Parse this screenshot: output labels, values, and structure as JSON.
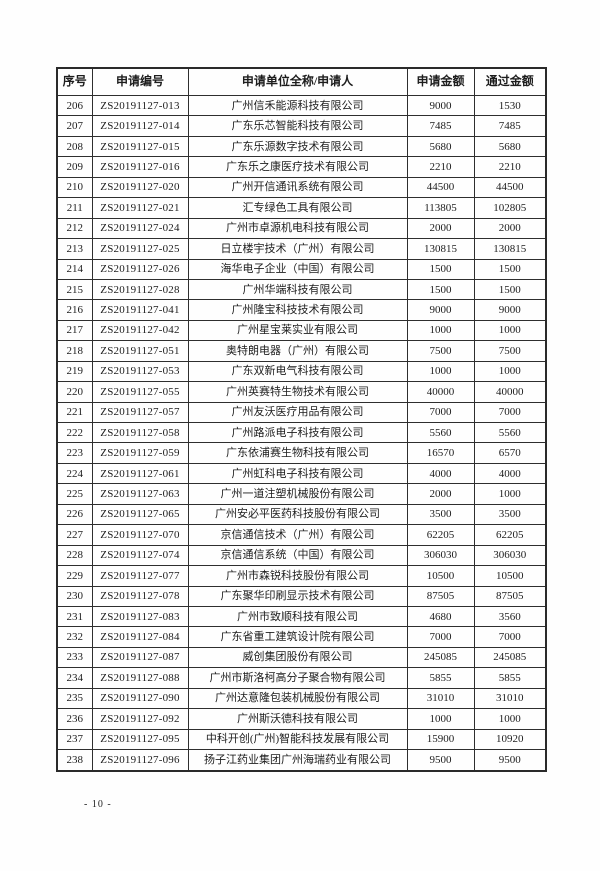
{
  "page": {
    "footer_page_number": "- 10 -"
  },
  "table": {
    "headers": [
      "序号",
      "申请编号",
      "申请单位全称/申请人",
      "申请金额",
      "通过金额"
    ],
    "rows": [
      [
        "206",
        "ZS20191127-013",
        "广州信禾能源科技有限公司",
        "9000",
        "1530"
      ],
      [
        "207",
        "ZS20191127-014",
        "广东乐芯智能科技有限公司",
        "7485",
        "7485"
      ],
      [
        "208",
        "ZS20191127-015",
        "广东乐源数字技术有限公司",
        "5680",
        "5680"
      ],
      [
        "209",
        "ZS20191127-016",
        "广东乐之康医疗技术有限公司",
        "2210",
        "2210"
      ],
      [
        "210",
        "ZS20191127-020",
        "广州开信通讯系统有限公司",
        "44500",
        "44500"
      ],
      [
        "211",
        "ZS20191127-021",
        "汇专绿色工具有限公司",
        "113805",
        "102805"
      ],
      [
        "212",
        "ZS20191127-024",
        "广州市卓源机电科技有限公司",
        "2000",
        "2000"
      ],
      [
        "213",
        "ZS20191127-025",
        "日立楼宇技术（广州）有限公司",
        "130815",
        "130815"
      ],
      [
        "214",
        "ZS20191127-026",
        "海华电子企业（中国）有限公司",
        "1500",
        "1500"
      ],
      [
        "215",
        "ZS20191127-028",
        "广州华端科技有限公司",
        "1500",
        "1500"
      ],
      [
        "216",
        "ZS20191127-041",
        "广州隆宝科技技术有限公司",
        "9000",
        "9000"
      ],
      [
        "217",
        "ZS20191127-042",
        "广州星宝莱实业有限公司",
        "1000",
        "1000"
      ],
      [
        "218",
        "ZS20191127-051",
        "奥特朗电器（广州）有限公司",
        "7500",
        "7500"
      ],
      [
        "219",
        "ZS20191127-053",
        "广东双新电气科技有限公司",
        "1000",
        "1000"
      ],
      [
        "220",
        "ZS20191127-055",
        "广州英赛特生物技术有限公司",
        "40000",
        "40000"
      ],
      [
        "221",
        "ZS20191127-057",
        "广州友沃医疗用品有限公司",
        "7000",
        "7000"
      ],
      [
        "222",
        "ZS20191127-058",
        "广州路派电子科技有限公司",
        "5560",
        "5560"
      ],
      [
        "223",
        "ZS20191127-059",
        "广东依浦赛生物科技有限公司",
        "16570",
        "6570"
      ],
      [
        "224",
        "ZS20191127-061",
        "广州虹科电子科技有限公司",
        "4000",
        "4000"
      ],
      [
        "225",
        "ZS20191127-063",
        "广州一道注塑机械股份有限公司",
        "2000",
        "1000"
      ],
      [
        "226",
        "ZS20191127-065",
        "广州安必平医药科技股份有限公司",
        "3500",
        "3500"
      ],
      [
        "227",
        "ZS20191127-070",
        "京信通信技术（广州）有限公司",
        "62205",
        "62205"
      ],
      [
        "228",
        "ZS20191127-074",
        "京信通信系统（中国）有限公司",
        "306030",
        "306030"
      ],
      [
        "229",
        "ZS20191127-077",
        "广州市森锐科技股份有限公司",
        "10500",
        "10500"
      ],
      [
        "230",
        "ZS20191127-078",
        "广东聚华印刷显示技术有限公司",
        "87505",
        "87505"
      ],
      [
        "231",
        "ZS20191127-083",
        "广州市致顺科技有限公司",
        "4680",
        "3560"
      ],
      [
        "232",
        "ZS20191127-084",
        "广东省重工建筑设计院有限公司",
        "7000",
        "7000"
      ],
      [
        "233",
        "ZS20191127-087",
        "威创集团股份有限公司",
        "245085",
        "245085"
      ],
      [
        "234",
        "ZS20191127-088",
        "广州市斯洛柯高分子聚合物有限公司",
        "5855",
        "5855"
      ],
      [
        "235",
        "ZS20191127-090",
        "广州达意隆包装机械股份有限公司",
        "31010",
        "31010"
      ],
      [
        "236",
        "ZS20191127-092",
        "广州斯沃德科技有限公司",
        "1000",
        "1000"
      ],
      [
        "237",
        "ZS20191127-095",
        "中科开创(广州)智能科技发展有限公司",
        "15900",
        "10920"
      ],
      [
        "238",
        "ZS20191127-096",
        "扬子江药业集团广州海瑞药业有限公司",
        "9500",
        "9500"
      ]
    ]
  }
}
